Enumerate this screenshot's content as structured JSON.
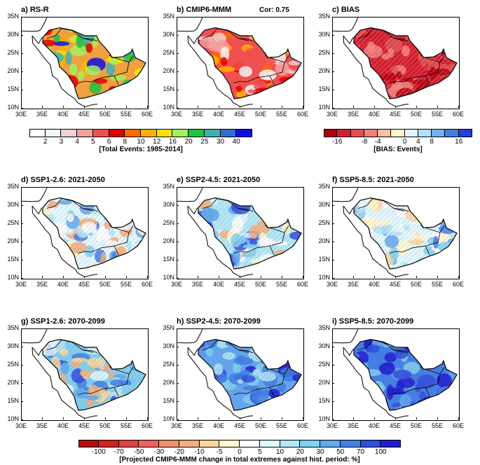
{
  "figure": {
    "x_ticks": [
      "30E",
      "35E",
      "40E",
      "45E",
      "50E",
      "55E",
      "60E"
    ],
    "y_ticks": [
      "35N",
      "30N",
      "25N",
      "20N",
      "15N",
      "10N"
    ],
    "panels": [
      {
        "id": "a",
        "title": "a) RS-R",
        "variant": "obs",
        "cor": ""
      },
      {
        "id": "b",
        "title": "b) CMIP6-MMM",
        "variant": "model",
        "cor": "Cor: 0.75"
      },
      {
        "id": "c",
        "title": "c) BIAS",
        "variant": "bias",
        "cor": ""
      },
      {
        "id": "d",
        "title": "d) SSP1-2.6: 2021-2050",
        "variant": "near1",
        "cor": ""
      },
      {
        "id": "e",
        "title": "e) SSP2-4.5: 2021-2050",
        "variant": "near2",
        "cor": ""
      },
      {
        "id": "f",
        "title": "f) SSP5-8.5: 2021-2050",
        "variant": "near3",
        "cor": ""
      },
      {
        "id": "g",
        "title": "g) SSP1-2.6: 2070-2099",
        "variant": "far1",
        "cor": ""
      },
      {
        "id": "h",
        "title": "h) SSP2-4.5: 2070-2099",
        "variant": "far2",
        "cor": ""
      },
      {
        "id": "i",
        "title": "i) SSP5-8.5: 2070-2099",
        "variant": "far3",
        "cor": ""
      }
    ]
  },
  "colorbars": {
    "events": {
      "labels": [
        "2",
        "3",
        "4",
        "5",
        "6",
        "8",
        "10",
        "12",
        "16",
        "20",
        "25",
        "30",
        "40"
      ],
      "colors": [
        "#ffffff",
        "#f5f5f5",
        "#f0d0d0",
        "#f4a0a0",
        "#f05050",
        "#e00000",
        "#ff6a00",
        "#ffb000",
        "#ffe000",
        "#a0f060",
        "#20c040",
        "#40b0b0",
        "#3070d0",
        "#1010e0"
      ],
      "caption": "[Total Events: 1985-2014]"
    },
    "bias": {
      "labels": [
        "-16",
        "-8",
        "-4",
        "0",
        "4",
        "8",
        "16"
      ],
      "colors": [
        "#b00010",
        "#d02030",
        "#e05050",
        "#f08080",
        "#f5c0a0",
        "#fff0d0",
        "#e0f5ff",
        "#b0e0ff",
        "#70b0f0",
        "#4080e0",
        "#2040e0"
      ],
      "caption": "[BIAS: Events]"
    },
    "change": {
      "labels": [
        "-100",
        "-70",
        "-50",
        "-30",
        "-20",
        "-10",
        "-5",
        "0",
        "5",
        "10",
        "20",
        "30",
        "50",
        "70",
        "100"
      ],
      "colors": [
        "#b01010",
        "#d02020",
        "#e04040",
        "#f06060",
        "#f09070",
        "#f0b080",
        "#f8d8a0",
        "#fff8d0",
        "#ffffff",
        "#e0f8ff",
        "#b0e8f8",
        "#80d0f0",
        "#60a8f0",
        "#4080e8",
        "#3050e0",
        "#2020d0"
      ],
      "caption": "[Projected CMIP6-MMM change in total extremes against hist. period: %]"
    }
  }
}
